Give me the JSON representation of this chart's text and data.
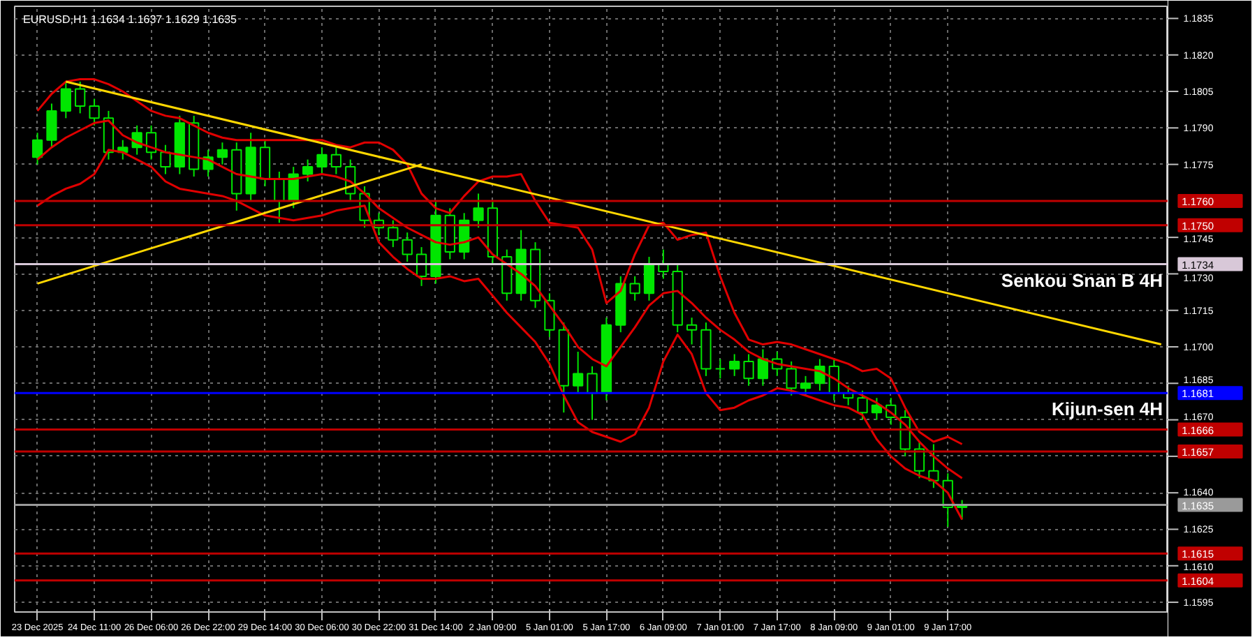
{
  "chart_data": {
    "type": "candlestick",
    "title": "EURUSD,H1  1.1634 1.1637 1.1629 1.1635",
    "color": "#00e600",
    "categories": [
      "23 Dec 2025",
      null,
      null,
      null,
      "24 Dec 11:00",
      null,
      null,
      null,
      "26 Dec 06:00",
      null,
      null,
      null,
      "26 Dec 22:00",
      null,
      null,
      null,
      "29 Dec 14:00",
      null,
      null,
      null,
      "30 Dec 06:00",
      null,
      null,
      null,
      "30 Dec 22:00",
      null,
      null,
      null,
      "31 Dec 14:00",
      null,
      null,
      null,
      "2 Jan 09:00",
      null,
      null,
      null,
      "5 Jan 01:00",
      null,
      null,
      null,
      "5 Jan 17:00",
      null,
      null,
      null,
      "6 Jan 09:00",
      null,
      null,
      null,
      "7 Jan 01:00",
      null,
      null,
      null,
      "7 Jan 17:00",
      null,
      null,
      null,
      "8 Jan 09:00",
      null,
      null,
      null,
      "9 Jan 01:00",
      null,
      null,
      null,
      "9 Jan 17:00",
      null,
      null,
      null,
      null,
      null,
      null,
      null,
      null,
      null,
      null,
      null,
      null,
      null,
      null,
      null
    ],
    "ohlc": [
      [
        1.1778,
        1.1788,
        1.1775,
        1.1785
      ],
      [
        1.1785,
        1.18,
        1.1782,
        1.1797
      ],
      [
        1.1797,
        1.1809,
        1.1794,
        1.1806
      ],
      [
        1.1806,
        1.1809,
        1.1796,
        1.1799
      ],
      [
        1.1799,
        1.1802,
        1.1791,
        1.1794
      ],
      [
        1.1794,
        1.1797,
        1.1777,
        1.178
      ],
      [
        1.178,
        1.1785,
        1.1777,
        1.1782
      ],
      [
        1.1782,
        1.1791,
        1.1779,
        1.1788
      ],
      [
        1.1788,
        1.1791,
        1.1777,
        1.178
      ],
      [
        1.178,
        1.1783,
        1.1771,
        1.1774
      ],
      [
        1.1774,
        1.1795,
        1.1771,
        1.1792
      ],
      [
        1.1792,
        1.1795,
        1.177,
        1.1773
      ],
      [
        1.1773,
        1.1781,
        1.177,
        1.1778
      ],
      [
        1.1778,
        1.1784,
        1.1775,
        1.1781
      ],
      [
        1.1781,
        1.1784,
        1.1756,
        1.1763
      ],
      [
        1.1763,
        1.1788,
        1.176,
        1.1782
      ],
      [
        1.1782,
        1.1785,
        1.1766,
        1.1769
      ],
      [
        1.1769,
        1.1772,
        1.1751,
        1.176
      ],
      [
        1.176,
        1.1774,
        1.1757,
        1.1771
      ],
      [
        1.1771,
        1.1777,
        1.1768,
        1.1774
      ],
      [
        1.1774,
        1.1782,
        1.1771,
        1.1779
      ],
      [
        1.1779,
        1.1782,
        1.1771,
        1.1774
      ],
      [
        1.1774,
        1.1777,
        1.176,
        1.1763
      ],
      [
        1.1763,
        1.1766,
        1.1749,
        1.1752
      ],
      [
        1.1752,
        1.1755,
        1.1746,
        1.1749
      ],
      [
        1.1749,
        1.1752,
        1.1741,
        1.1744
      ],
      [
        1.1744,
        1.1747,
        1.1735,
        1.1738
      ],
      [
        1.1738,
        1.1741,
        1.1725,
        1.1729
      ],
      [
        1.1729,
        1.176,
        1.1726,
        1.1754
      ],
      [
        1.1754,
        1.1757,
        1.1736,
        1.1739
      ],
      [
        1.1739,
        1.1755,
        1.1736,
        1.1752
      ],
      [
        1.1752,
        1.1763,
        1.1749,
        1.1757
      ],
      [
        1.1757,
        1.176,
        1.1734,
        1.1737
      ],
      [
        1.1737,
        1.174,
        1.1719,
        1.1722
      ],
      [
        1.1722,
        1.1748,
        1.1719,
        1.174
      ],
      [
        1.174,
        1.1743,
        1.1716,
        1.1719
      ],
      [
        1.1719,
        1.1722,
        1.1704,
        1.1707
      ],
      [
        1.1707,
        1.171,
        1.1673,
        1.1684
      ],
      [
        1.1684,
        1.1698,
        1.1681,
        1.1689
      ],
      [
        1.1689,
        1.1692,
        1.167,
        1.1681
      ],
      [
        1.1681,
        1.1712,
        1.1678,
        1.1709
      ],
      [
        1.1709,
        1.1729,
        1.1706,
        1.1726
      ],
      [
        1.1726,
        1.1729,
        1.1719,
        1.1722
      ],
      [
        1.1722,
        1.1737,
        1.1719,
        1.1734
      ],
      [
        1.1734,
        1.174,
        1.1728,
        1.1731
      ],
      [
        1.1731,
        1.1734,
        1.1706,
        1.1709
      ],
      [
        1.1709,
        1.1712,
        1.1701,
        1.1707
      ],
      [
        1.1707,
        1.171,
        1.1688,
        1.1691
      ],
      [
        1.1691,
        1.1695,
        1.1687,
        1.1691
      ],
      [
        1.1691,
        1.1697,
        1.1688,
        1.1694
      ],
      [
        1.1694,
        1.1697,
        1.1684,
        1.1687
      ],
      [
        1.1687,
        1.1699,
        1.1684,
        1.1695
      ],
      [
        1.1695,
        1.1698,
        1.1688,
        1.1691
      ],
      [
        1.1691,
        1.1694,
        1.168,
        1.1683
      ],
      [
        1.1683,
        1.1688,
        1.168,
        1.1685
      ],
      [
        1.1685,
        1.1695,
        1.1682,
        1.1692
      ],
      [
        1.1692,
        1.1695,
        1.1678,
        1.1681
      ],
      [
        1.1681,
        1.1684,
        1.1676,
        1.1679
      ],
      [
        1.1679,
        1.1682,
        1.167,
        1.1673
      ],
      [
        1.1673,
        1.1679,
        1.167,
        1.1676
      ],
      [
        1.1676,
        1.1679,
        1.1668,
        1.1671
      ],
      [
        1.1671,
        1.1674,
        1.1655,
        1.1658
      ],
      [
        1.1658,
        1.1661,
        1.1646,
        1.1649
      ],
      [
        1.1649,
        1.166,
        1.1642,
        1.1645
      ],
      [
        1.1645,
        1.1648,
        1.1626,
        1.1634
      ],
      [
        1.1634,
        1.1637,
        1.1629,
        1.1635
      ],
      null,
      null,
      null,
      null,
      null,
      null,
      null,
      null,
      null,
      null,
      null,
      null,
      null,
      null
    ],
    "series": [
      {
        "type": "line",
        "color": "#e00000",
        "values": [
          1.1797,
          1.1804,
          1.1809,
          1.181,
          1.181,
          1.1808,
          1.1805,
          1.1801,
          1.1797,
          1.1795,
          1.1794,
          1.1791,
          1.1788,
          1.1786,
          1.1785,
          1.1785,
          1.1785,
          1.1785,
          1.1785,
          1.1785,
          1.1785,
          1.1783,
          1.1782,
          1.1784,
          1.1784,
          1.1781,
          1.1775,
          1.1763,
          1.1757,
          1.1755,
          1.1762,
          1.1768,
          1.177,
          1.177,
          1.1771,
          1.176,
          1.1751,
          1.175,
          1.1749,
          1.174,
          1.1718,
          1.1723,
          1.1738,
          1.175,
          1.1751,
          1.1744,
          1.1746,
          1.1747,
          1.1729,
          1.1714,
          1.1703,
          1.1701,
          1.1702,
          1.1701,
          1.1699,
          1.1697,
          1.1695,
          1.1693,
          1.169,
          1.1691,
          1.1687,
          1.1675,
          1.1665,
          1.1661,
          1.1663,
          1.166,
          null,
          null,
          null,
          null,
          null,
          null,
          null,
          null,
          null,
          null,
          null,
          null,
          null,
          null
        ]
      },
      {
        "type": "line",
        "color": "#e00000",
        "values": [
          1.1777,
          1.1782,
          1.1786,
          1.1789,
          1.1792,
          1.1793,
          1.1787,
          1.1784,
          1.1782,
          1.178,
          1.1779,
          1.1778,
          1.1777,
          1.1774,
          1.1771,
          1.177,
          1.1769,
          1.1769,
          1.1769,
          1.177,
          1.1771,
          1.177,
          1.1768,
          1.1763,
          1.1757,
          1.1753,
          1.1749,
          1.1746,
          1.1743,
          1.1742,
          1.1743,
          1.1745,
          1.1738,
          1.1734,
          1.173,
          1.1725,
          1.1717,
          1.1709,
          1.17,
          1.1695,
          1.1692,
          1.17,
          1.1708,
          1.1717,
          1.1722,
          1.1723,
          1.1718,
          1.1712,
          1.1707,
          1.1703,
          1.1698,
          1.1695,
          1.1693,
          1.1692,
          1.1691,
          1.169,
          1.1687,
          1.1683,
          1.168,
          1.1677,
          1.1673,
          1.1668,
          1.1661,
          1.1655,
          1.165,
          1.1646,
          null,
          null,
          null,
          null,
          null,
          null,
          null,
          null,
          null,
          null,
          null,
          null,
          null,
          null
        ]
      },
      {
        "type": "line",
        "color": "#e00000",
        "values": [
          1.1758,
          1.1762,
          1.1765,
          1.1767,
          1.1771,
          1.1781,
          1.178,
          1.1777,
          1.1774,
          1.1768,
          1.1765,
          1.1764,
          1.1763,
          1.1762,
          1.176,
          1.1757,
          1.1754,
          1.1753,
          1.1752,
          1.1753,
          1.1754,
          1.1756,
          1.1757,
          1.1758,
          1.1743,
          1.1737,
          1.1732,
          1.1728,
          1.1728,
          1.1729,
          1.1727,
          1.1728,
          1.1721,
          1.1714,
          1.1708,
          1.1702,
          1.1693,
          1.168,
          1.1669,
          1.1665,
          1.1663,
          1.1661,
          1.1664,
          1.1675,
          1.1694,
          1.1705,
          1.1697,
          1.1681,
          1.1674,
          1.1675,
          1.1678,
          1.168,
          1.1683,
          1.1682,
          1.168,
          1.1678,
          1.1676,
          1.1675,
          1.1672,
          1.1662,
          1.1655,
          1.165,
          1.1647,
          1.1645,
          1.164,
          1.1629,
          null,
          null,
          null,
          null,
          null,
          null,
          null,
          null,
          null,
          null,
          null,
          null,
          null,
          null
        ]
      },
      {
        "type": "line",
        "color": "#ffd700",
        "values": [
          null,
          null,
          1.1809,
          null,
          null,
          null,
          null,
          null,
          null,
          null,
          null,
          null,
          null,
          null,
          null,
          null,
          null,
          null,
          null,
          null,
          null,
          null,
          null,
          null,
          null,
          null,
          null,
          null,
          null,
          null,
          null,
          null,
          null,
          null,
          null,
          null,
          null,
          null,
          null,
          null,
          null,
          null,
          null,
          null,
          null,
          null,
          null,
          null,
          null,
          null,
          null,
          null,
          null,
          null,
          null,
          null,
          null,
          null,
          null,
          null,
          null,
          null,
          null,
          null,
          null,
          null,
          null,
          null,
          null,
          null,
          null,
          null,
          null,
          null,
          null,
          null,
          null,
          null,
          null,
          1.1701
        ]
      },
      {
        "type": "line",
        "color": "#ffd700",
        "values": [
          1.1726,
          null,
          null,
          null,
          null,
          null,
          null,
          null,
          null,
          null,
          null,
          null,
          null,
          null,
          null,
          null,
          null,
          null,
          null,
          null,
          null,
          null,
          null,
          null,
          null,
          null,
          null,
          1.1775,
          null,
          null,
          null,
          null,
          null,
          null,
          null,
          null,
          null,
          null,
          null,
          null,
          null,
          null,
          null,
          null,
          null,
          null,
          null,
          null,
          null,
          null,
          null,
          null,
          null,
          null,
          null,
          null,
          null,
          null,
          null,
          null,
          null,
          null,
          null,
          null,
          null,
          null,
          null,
          null,
          null,
          null,
          null,
          null,
          null,
          null,
          null,
          null,
          null,
          null,
          null,
          null
        ]
      }
    ],
    "ylim": [
      1.1591,
      1.184
    ],
    "yticks": [
      {
        "value": 1.1595,
        "label": "1.1595"
      },
      {
        "value": 1.161,
        "label": "1.1610"
      },
      {
        "value": 1.1625,
        "label": "1.1625"
      },
      {
        "value": 1.164,
        "label": "1.1640"
      },
      {
        "value": 1.1655,
        "label": null
      },
      {
        "value": 1.167,
        "label": "1.1670"
      },
      {
        "value": 1.1685,
        "label": "1.1685"
      },
      {
        "value": 1.17,
        "label": "1.1700"
      },
      {
        "value": 1.1715,
        "label": "1.1715"
      },
      {
        "value": 1.173,
        "label": "1.1730"
      },
      {
        "value": 1.1745,
        "label": "1.1745"
      },
      {
        "value": 1.1775,
        "label": "1.1775"
      },
      {
        "value": 1.179,
        "label": "1.1790"
      },
      {
        "value": 1.1805,
        "label": "1.1805"
      },
      {
        "value": 1.182,
        "label": "1.1820"
      },
      {
        "value": 1.1835,
        "label": "1.1835"
      }
    ],
    "grid": true,
    "ref_lines": [
      {
        "axis": "y",
        "value": 1.176,
        "label": "1.1760",
        "color": "#c00000"
      },
      {
        "axis": "y",
        "value": 1.175,
        "label": "1.1750",
        "color": "#c00000"
      },
      {
        "axis": "y",
        "value": 1.1734,
        "label": "1.1734",
        "color": "#d8c8d8"
      },
      {
        "axis": "y",
        "value": 1.1681,
        "label": "1.1681",
        "color": "#0000ff"
      },
      {
        "axis": "y",
        "value": 1.1666,
        "label": "1.1666",
        "color": "#c00000"
      },
      {
        "axis": "y",
        "value": 1.1657,
        "label": "1.1657",
        "color": "#c00000"
      },
      {
        "axis": "y",
        "value": 1.1635,
        "label": "1.1635",
        "color": "#9a9a9a"
      },
      {
        "axis": "y",
        "value": 1.1615,
        "label": "1.1615",
        "color": "#c00000"
      },
      {
        "axis": "y",
        "value": 1.1604,
        "label": "1.1604",
        "color": "#c00000"
      }
    ],
    "annotations": [
      {
        "text": "Senkou Snan B 4H",
        "y": 1.1734
      },
      {
        "text": "Kijun-sen 4H",
        "y": 1.1681
      }
    ]
  }
}
